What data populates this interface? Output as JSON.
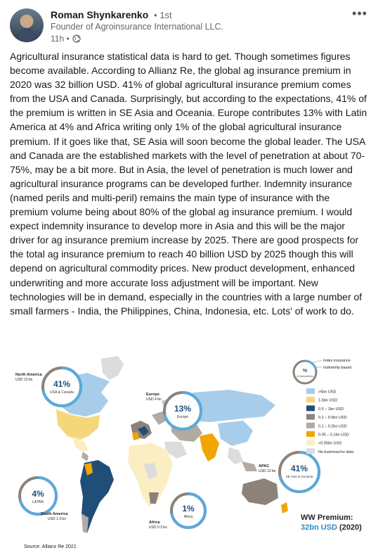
{
  "post": {
    "author": "Roman Shynkarenko",
    "degree": "• 1st",
    "headline": "Founder of Agroinsurance International LLC.",
    "time": "11h •",
    "text": "Agricultural insurance statistical data is hard to get. Though sometimes figures become available. According to Allianz Re, the global ag insurance premium in 2020 was 32 billion USD. 41% of global agricultural insurance premium comes from the USA and Canada. Surprisingly, but according to the expectations, 41% of the premium is written in SE Asia and Oceania. Europe contributes 13% with Latin America at 4% and Africa writing only 1% of the global agricultural insurance premium. If it goes like that, SE Asia will soon become the global leader. The USA and Canada are the established markets with the level of penetration at about 70-75%, may be a bit more. But in Asia, the level of penetration is much lower and agricultural insurance programs can be developed further. Indemnity insurance (named perils and multi-peril) remains the main type of insurance with the premium volume being about 80% of the global ag insurance premium. I would expect indemnity insurance to develop more in Asia and this will be the major driver for ag insurance premium increase by 2025. There are good prospects for the total ag insurance premium to reach 40 billion USD by 2025 though this will depend on agricultural commodity prices. New product development, enhanced underwriting and more accurate loss adjustment will be important. New technologies will be in demand, especially in the countries with a large number of small farmers - India, the Philippines, China, Indonesia, etc. Lots' of work to do."
  },
  "figure": {
    "regions": [
      {
        "label": "North America",
        "usd": "USD 13 bn",
        "pct": "41%",
        "name": "USA & Canada",
        "share": 0.41
      },
      {
        "label": "Europe",
        "usd": "USD 4 bn",
        "pct": "13%",
        "name": "Europe",
        "share": 0.13
      },
      {
        "label": "APAC",
        "usd": "USD 13 bn",
        "pct": "41%",
        "name": "SE Asia & Oceania",
        "share": 0.41
      },
      {
        "label": "South America",
        "usd": "USD 1.3 bn",
        "pct": "4%",
        "name": "LATAM",
        "share": 0.04
      },
      {
        "label": "Africa",
        "usd": "USD 0.3 bn",
        "pct": "1%",
        "name": "Africa",
        "share": 0.01
      }
    ],
    "key": {
      "pct_symbol": "%",
      "pct_caption": "of total portfolio",
      "index": "Index insurance",
      "indemnity": "Indemnity based"
    },
    "legend": [
      {
        "label": ">5bn USD",
        "color": "#a7cdea"
      },
      {
        "label": "1-5bn USD",
        "color": "#f5d77a"
      },
      {
        "label": "0.5 – 1bn USD",
        "color": "#1f4e79"
      },
      {
        "label": "0.2 – 0.5bn USD",
        "color": "#8c8279"
      },
      {
        "label": "0.1 – 0.2bn USD",
        "color": "#b3aaa1"
      },
      {
        "label": "0.05 – 0.1bn USD",
        "color": "#f0a500"
      },
      {
        "label": "<0.05bn USD",
        "color": "#fbeec2"
      },
      {
        "label": "No business/no data",
        "color": "#dcdcdc"
      }
    ],
    "ww_title": "WW Premium:",
    "ww_value": "32bn USD",
    "ww_year": "(2020)",
    "source": "Source: Allianz Re 2021",
    "colors": {
      "ring": "#5aa9dc",
      "ring_track": "#8c8279",
      "accent": "#2e8bc9"
    }
  }
}
